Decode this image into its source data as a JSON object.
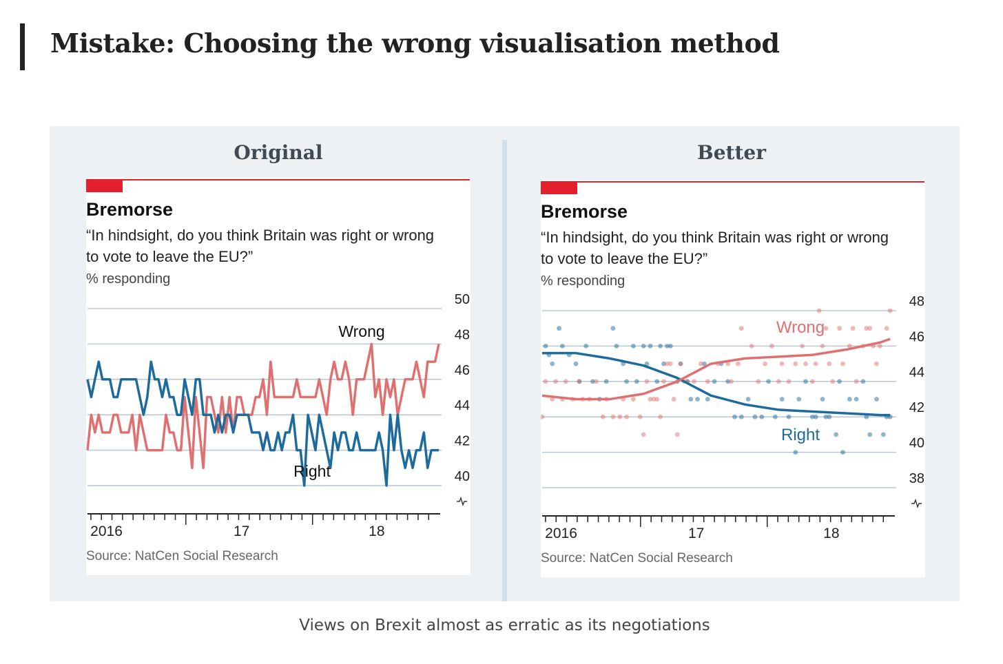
{
  "page": {
    "title": "Mistake: Choosing the wrong visualisation method",
    "caption": "Views on Brexit almost as erratic as its negotiations"
  },
  "left_panel": {
    "heading": "Original"
  },
  "right_panel": {
    "heading": "Better"
  },
  "colors": {
    "wrong": "#e07070",
    "right": "#1c6b9c",
    "accent": "#e3202c",
    "grid": "#b9c7d2"
  },
  "chart_data": [
    {
      "type": "line",
      "title": "Bremorse",
      "subtitle_line1": "“In hindsight, do you think Britain was right or wrong",
      "subtitle_line2": "to vote to leave the EU?”",
      "unit_label": "% responding",
      "source": "Source: NatCen Social Research",
      "ylim": [
        40,
        50
      ],
      "ytick_labels": [
        "40",
        "42",
        "44",
        "46",
        "48",
        "50"
      ],
      "xlim": [
        0,
        104
      ],
      "xtick_labels": [
        {
          "x": 5,
          "label": "2016"
        },
        {
          "x": 45,
          "label": "17"
        },
        {
          "x": 85,
          "label": "18"
        }
      ],
      "series": [
        {
          "name": "Wrong",
          "key": "wrong",
          "values": [
            42,
            44,
            43,
            44,
            43,
            43,
            43,
            44,
            44,
            43,
            43,
            43,
            44,
            42,
            44,
            43,
            42,
            42,
            42,
            42,
            42,
            44,
            43,
            43,
            42,
            42,
            45,
            43,
            41,
            45,
            43,
            41,
            45,
            45,
            44,
            43,
            45,
            43,
            45,
            43,
            45,
            45,
            44,
            44,
            44,
            45,
            45,
            46,
            44,
            47,
            45,
            45,
            45,
            45,
            45,
            45,
            46,
            45,
            45,
            45,
            45,
            45,
            46,
            45,
            44,
            46,
            47,
            46,
            46,
            47,
            46,
            44,
            46,
            46,
            46,
            47,
            48,
            45,
            46,
            44,
            46,
            45,
            46,
            44,
            45,
            46,
            46,
            46,
            47,
            46,
            45,
            47,
            47,
            47,
            48
          ]
        },
        {
          "name": "Right",
          "key": "right",
          "values": [
            46,
            45,
            46,
            47,
            46,
            46,
            46,
            45,
            45,
            46,
            46,
            46,
            46,
            46,
            45,
            44,
            45,
            47,
            46,
            46,
            45,
            46,
            45,
            45,
            44,
            44,
            46,
            45,
            44,
            46,
            46,
            44,
            44,
            44,
            43,
            44,
            43,
            44,
            44,
            43,
            44,
            44,
            44,
            44,
            43,
            43,
            43,
            42,
            43,
            42,
            42,
            43,
            42,
            43,
            43,
            44,
            42,
            42,
            40,
            44,
            43,
            42,
            44,
            43,
            42,
            41,
            43,
            42,
            43,
            43,
            42,
            42,
            43,
            42,
            42,
            42,
            42,
            42,
            43,
            42,
            40,
            44,
            42,
            44,
            42,
            41,
            42,
            41,
            42,
            42,
            43,
            41,
            42,
            42,
            42
          ]
        }
      ],
      "annotations": [
        {
          "text": "Wrong",
          "series": "wrong"
        },
        {
          "text": "Right",
          "series": "right"
        }
      ]
    },
    {
      "type": "scatter",
      "title": "Bremorse",
      "subtitle_line1": "“In hindsight, do you think Britain was right or wrong",
      "subtitle_line2": "to vote to leave the EU?”",
      "unit_label": "% responding",
      "source": "Source: NatCen Social Research",
      "ylim": [
        38,
        48
      ],
      "ytick_labels": [
        "38",
        "40",
        "42",
        "44",
        "46",
        "48"
      ],
      "xlim": [
        0,
        104
      ],
      "xtick_labels": [
        {
          "x": 5,
          "label": "2016"
        },
        {
          "x": 45,
          "label": "17"
        },
        {
          "x": 85,
          "label": "18"
        }
      ],
      "series": [
        {
          "name": "Right",
          "key": "right",
          "points": [
            [
              1,
              46
            ],
            [
              2,
              45.5
            ],
            [
              3,
              45
            ],
            [
              5,
              47
            ],
            [
              6,
              46
            ],
            [
              8,
              45.5
            ],
            [
              10,
              45
            ],
            [
              11,
              44
            ],
            [
              13,
              46
            ],
            [
              15,
              44
            ],
            [
              17,
              43
            ],
            [
              19,
              44
            ],
            [
              21,
              47
            ],
            [
              22,
              46
            ],
            [
              24,
              45
            ],
            [
              25,
              44
            ],
            [
              27,
              46
            ],
            [
              28,
              44
            ],
            [
              30,
              46
            ],
            [
              31,
              45
            ],
            [
              32,
              46
            ],
            [
              34,
              44
            ],
            [
              35,
              46
            ],
            [
              36,
              45
            ],
            [
              37,
              46
            ],
            [
              38,
              46
            ],
            [
              40,
              44
            ],
            [
              41,
              45
            ],
            [
              43,
              44
            ],
            [
              44,
              43
            ],
            [
              46,
              43
            ],
            [
              48,
              45
            ],
            [
              49,
              43
            ],
            [
              51,
              44
            ],
            [
              53,
              45
            ],
            [
              55,
              44
            ],
            [
              57,
              42
            ],
            [
              59,
              42
            ],
            [
              61,
              43
            ],
            [
              63,
              42
            ],
            [
              65,
              42
            ],
            [
              67,
              44
            ],
            [
              69,
              42
            ],
            [
              71,
              43
            ],
            [
              73,
              42
            ],
            [
              75,
              40
            ],
            [
              76,
              43
            ],
            [
              78,
              44
            ],
            [
              80,
              42
            ],
            [
              81,
              42
            ],
            [
              83,
              43
            ],
            [
              84,
              42
            ],
            [
              85,
              42
            ],
            [
              87,
              41
            ],
            [
              88,
              44
            ],
            [
              89,
              40
            ],
            [
              91,
              43
            ],
            [
              93,
              43
            ],
            [
              95,
              44
            ],
            [
              96,
              42
            ],
            [
              97,
              41
            ],
            [
              99,
              43
            ],
            [
              101,
              41
            ],
            [
              102,
              42
            ],
            [
              103,
              42
            ]
          ]
        },
        {
          "name": "Wrong",
          "key": "wrong",
          "points": [
            [
              0,
              42
            ],
            [
              1,
              44
            ],
            [
              3,
              43
            ],
            [
              4,
              44
            ],
            [
              6,
              43
            ],
            [
              7,
              44
            ],
            [
              9,
              43
            ],
            [
              11,
              44
            ],
            [
              12,
              43
            ],
            [
              14,
              43
            ],
            [
              16,
              44
            ],
            [
              18,
              42
            ],
            [
              19,
              43
            ],
            [
              21,
              42
            ],
            [
              23,
              42
            ],
            [
              24,
              43
            ],
            [
              25,
              42
            ],
            [
              27,
              43
            ],
            [
              29,
              42
            ],
            [
              30,
              41
            ],
            [
              31,
              44
            ],
            [
              32,
              43
            ],
            [
              33,
              43
            ],
            [
              34,
              43
            ],
            [
              35,
              42
            ],
            [
              36,
              44
            ],
            [
              37,
              45
            ],
            [
              38,
              45
            ],
            [
              39,
              43
            ],
            [
              40,
              41
            ],
            [
              41,
              45
            ],
            [
              42,
              44
            ],
            [
              43,
              44
            ],
            [
              45,
              44
            ],
            [
              47,
              45
            ],
            [
              49,
              44
            ],
            [
              52,
              45
            ],
            [
              55,
              45
            ],
            [
              56,
              44
            ],
            [
              58,
              45
            ],
            [
              59,
              47
            ],
            [
              62,
              46
            ],
            [
              64,
              44
            ],
            [
              66,
              45
            ],
            [
              68,
              46
            ],
            [
              70,
              44
            ],
            [
              71,
              45
            ],
            [
              73,
              44
            ],
            [
              75,
              45
            ],
            [
              77,
              46
            ],
            [
              78,
              45
            ],
            [
              80,
              44
            ],
            [
              81,
              45
            ],
            [
              82,
              48
            ],
            [
              83,
              46
            ],
            [
              84,
              47
            ],
            [
              85,
              45
            ],
            [
              86,
              44
            ],
            [
              88,
              47
            ],
            [
              89,
              45
            ],
            [
              91,
              46
            ],
            [
              92,
              47
            ],
            [
              93,
              44
            ],
            [
              95,
              46
            ],
            [
              96,
              47
            ],
            [
              97,
              47
            ],
            [
              98,
              46
            ],
            [
              99,
              45
            ],
            [
              100,
              46
            ],
            [
              102,
              47
            ],
            [
              103,
              48
            ]
          ]
        }
      ],
      "trends": [
        {
          "key": "right",
          "x": [
            0,
            10,
            20,
            30,
            40,
            45,
            50,
            60,
            70,
            80,
            90,
            100,
            103
          ],
          "y": [
            45.6,
            45.6,
            45.3,
            44.9,
            44.2,
            43.7,
            43.2,
            42.7,
            42.4,
            42.3,
            42.2,
            42.1,
            42.1
          ]
        },
        {
          "key": "wrong",
          "x": [
            0,
            10,
            20,
            30,
            40,
            45,
            50,
            60,
            70,
            80,
            90,
            100,
            103
          ],
          "y": [
            43.2,
            43.0,
            43.0,
            43.3,
            44.0,
            44.5,
            45.0,
            45.3,
            45.4,
            45.5,
            45.8,
            46.2,
            46.4
          ]
        }
      ],
      "annotations": [
        {
          "text": "Wrong",
          "series": "wrong"
        },
        {
          "text": "Right",
          "series": "right"
        }
      ]
    }
  ]
}
